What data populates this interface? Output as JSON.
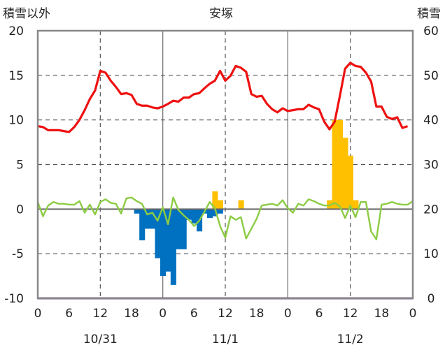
{
  "chart_data": {
    "type": "bar+line",
    "title": "安塚",
    "left_axis_label": "積雪以外",
    "right_axis_label": "積雪",
    "y_left": {
      "lim": [
        -10,
        20
      ],
      "ticks": [
        "20",
        "15",
        "10",
        "5",
        "0",
        "-5",
        "-10"
      ]
    },
    "y_right": {
      "lim": [
        0,
        60
      ],
      "ticks": [
        "60",
        "50",
        "40",
        "30",
        "20",
        "10",
        "0"
      ]
    },
    "x_hours": {
      "lim": [
        0,
        72
      ],
      "ticks": [
        "0",
        "6",
        "12",
        "18",
        "0",
        "6",
        "12",
        "18",
        "0",
        "6",
        "12",
        "18",
        "0"
      ]
    },
    "date_labels": [
      "10/31",
      "11/1",
      "11/2"
    ],
    "grid": {
      "dashed_hours": [
        12,
        36,
        60
      ],
      "solid_hours": [
        24,
        48
      ]
    },
    "colors": {
      "snow_depth": "#ee1111",
      "temperature": "#8ccc44",
      "snow_change_positive": "#ffc000",
      "snow_change_negative": "#0070c0",
      "precip": "#7030a0",
      "frame": "#888888"
    },
    "snow_depth": [
      [
        0,
        38.6
      ],
      [
        1,
        38.4
      ],
      [
        2,
        37.7
      ],
      [
        3,
        37.7
      ],
      [
        4,
        37.7
      ],
      [
        5,
        37.5
      ],
      [
        6,
        37.3
      ],
      [
        7,
        38.4
      ],
      [
        8,
        40.0
      ],
      [
        9,
        42.2
      ],
      [
        10,
        44.7
      ],
      [
        11,
        46.6
      ],
      [
        12,
        51.0
      ],
      [
        13,
        50.6
      ],
      [
        14,
        48.8
      ],
      [
        15,
        47.4
      ],
      [
        16,
        45.8
      ],
      [
        17,
        46.0
      ],
      [
        18,
        45.6
      ],
      [
        19,
        43.6
      ],
      [
        20,
        43.2
      ],
      [
        21,
        43.2
      ],
      [
        22,
        42.8
      ],
      [
        23,
        42.6
      ],
      [
        24,
        43.0
      ],
      [
        25,
        43.6
      ],
      [
        26,
        44.3
      ],
      [
        27,
        44.1
      ],
      [
        28,
        45.0
      ],
      [
        29,
        45.0
      ],
      [
        30,
        45.8
      ],
      [
        31,
        46.0
      ],
      [
        32,
        47.1
      ],
      [
        33,
        48.1
      ],
      [
        34,
        48.8
      ],
      [
        35,
        51.0
      ],
      [
        36,
        48.8
      ],
      [
        37,
        49.9
      ],
      [
        38,
        52.1
      ],
      [
        39,
        51.7
      ],
      [
        40,
        50.8
      ],
      [
        41,
        45.8
      ],
      [
        42,
        45.2
      ],
      [
        43,
        45.4
      ],
      [
        44,
        43.6
      ],
      [
        45,
        42.4
      ],
      [
        46,
        41.7
      ],
      [
        47,
        42.6
      ],
      [
        48,
        42.0
      ],
      [
        49,
        42.2
      ],
      [
        50,
        42.4
      ],
      [
        51,
        42.4
      ],
      [
        52,
        43.4
      ],
      [
        53,
        42.8
      ],
      [
        54,
        42.4
      ],
      [
        55,
        39.6
      ],
      [
        56,
        37.9
      ],
      [
        57,
        39.6
      ],
      [
        58,
        45.4
      ],
      [
        59,
        51.5
      ],
      [
        60,
        52.8
      ],
      [
        61,
        52.1
      ],
      [
        62,
        51.9
      ],
      [
        63,
        50.6
      ],
      [
        64,
        48.6
      ],
      [
        65,
        43.0
      ],
      [
        66,
        43.0
      ],
      [
        67,
        40.7
      ],
      [
        68,
        40.2
      ],
      [
        69,
        40.6
      ],
      [
        70,
        38.2
      ],
      [
        71,
        38.6
      ]
    ],
    "temperature": [
      [
        0,
        0.8
      ],
      [
        1,
        -0.8
      ],
      [
        2,
        0.4
      ],
      [
        3,
        0.8
      ],
      [
        4,
        0.6
      ],
      [
        5,
        0.6
      ],
      [
        6,
        0.5
      ],
      [
        7,
        0.5
      ],
      [
        8,
        0.9
      ],
      [
        9,
        -0.4
      ],
      [
        10,
        0.5
      ],
      [
        11,
        -0.6
      ],
      [
        12,
        0.8
      ],
      [
        13,
        1.1
      ],
      [
        14,
        0.7
      ],
      [
        15,
        0.6
      ],
      [
        16,
        -0.5
      ],
      [
        17,
        1.2
      ],
      [
        18,
        1.3
      ],
      [
        19,
        0.9
      ],
      [
        20,
        0.6
      ],
      [
        21,
        -0.6
      ],
      [
        22,
        -0.4
      ],
      [
        23,
        -1.3
      ],
      [
        24,
        0.2
      ],
      [
        25,
        -1.7
      ],
      [
        26,
        1.3
      ],
      [
        27,
        -0.1
      ],
      [
        28,
        -0.7
      ],
      [
        29,
        -1.2
      ],
      [
        30,
        -1.9
      ],
      [
        31,
        -1.3
      ],
      [
        32,
        -0.3
      ],
      [
        33,
        0.8
      ],
      [
        34,
        0.1
      ],
      [
        35,
        -1.9
      ],
      [
        36,
        -3.2
      ],
      [
        37,
        -0.8
      ],
      [
        38,
        -1.2
      ],
      [
        39,
        -0.9
      ],
      [
        40,
        -3.3
      ],
      [
        41,
        -2.2
      ],
      [
        42,
        -1.1
      ],
      [
        43,
        0.4
      ],
      [
        44,
        0.5
      ],
      [
        45,
        0.6
      ],
      [
        46,
        0.4
      ],
      [
        47,
        1.0
      ],
      [
        48,
        0.1
      ],
      [
        49,
        -0.4
      ],
      [
        50,
        0.6
      ],
      [
        51,
        0.4
      ],
      [
        52,
        1.1
      ],
      [
        53,
        0.9
      ],
      [
        54,
        0.6
      ],
      [
        55,
        0.4
      ],
      [
        56,
        0.4
      ],
      [
        57,
        0.7
      ],
      [
        58,
        0.3
      ],
      [
        59,
        -1.0
      ],
      [
        60,
        0.4
      ],
      [
        61,
        -0.9
      ],
      [
        62,
        0.8
      ],
      [
        63,
        0.8
      ],
      [
        64,
        -2.5
      ],
      [
        65,
        -3.4
      ],
      [
        66,
        0.5
      ],
      [
        67,
        0.6
      ],
      [
        68,
        0.8
      ],
      [
        69,
        0.6
      ],
      [
        70,
        0.5
      ],
      [
        71,
        0.5
      ],
      [
        72,
        0.9
      ]
    ],
    "snow_change": [
      [
        19,
        -0.5
      ],
      [
        20,
        -3.5
      ],
      [
        21,
        -2.2
      ],
      [
        22,
        -2.2
      ],
      [
        23,
        -5.5
      ],
      [
        24,
        -7.5
      ],
      [
        25,
        -7.0
      ],
      [
        26,
        -8.5
      ],
      [
        27,
        -4.5
      ],
      [
        28,
        -4.5
      ],
      [
        29,
        -1.2
      ],
      [
        30,
        -1.6
      ],
      [
        31,
        -2.5
      ],
      [
        32,
        -0.5
      ],
      [
        33,
        -1.0
      ],
      [
        34,
        -0.8
      ],
      [
        35,
        -0.5
      ],
      [
        34,
        2.0
      ],
      [
        35,
        1.0
      ],
      [
        39,
        1.0
      ],
      [
        56,
        1.0
      ],
      [
        57,
        10.0
      ],
      [
        58,
        10.0
      ],
      [
        59,
        8.0
      ],
      [
        60,
        6.0
      ],
      [
        61,
        1.0
      ]
    ],
    "precip_level": -10
  }
}
